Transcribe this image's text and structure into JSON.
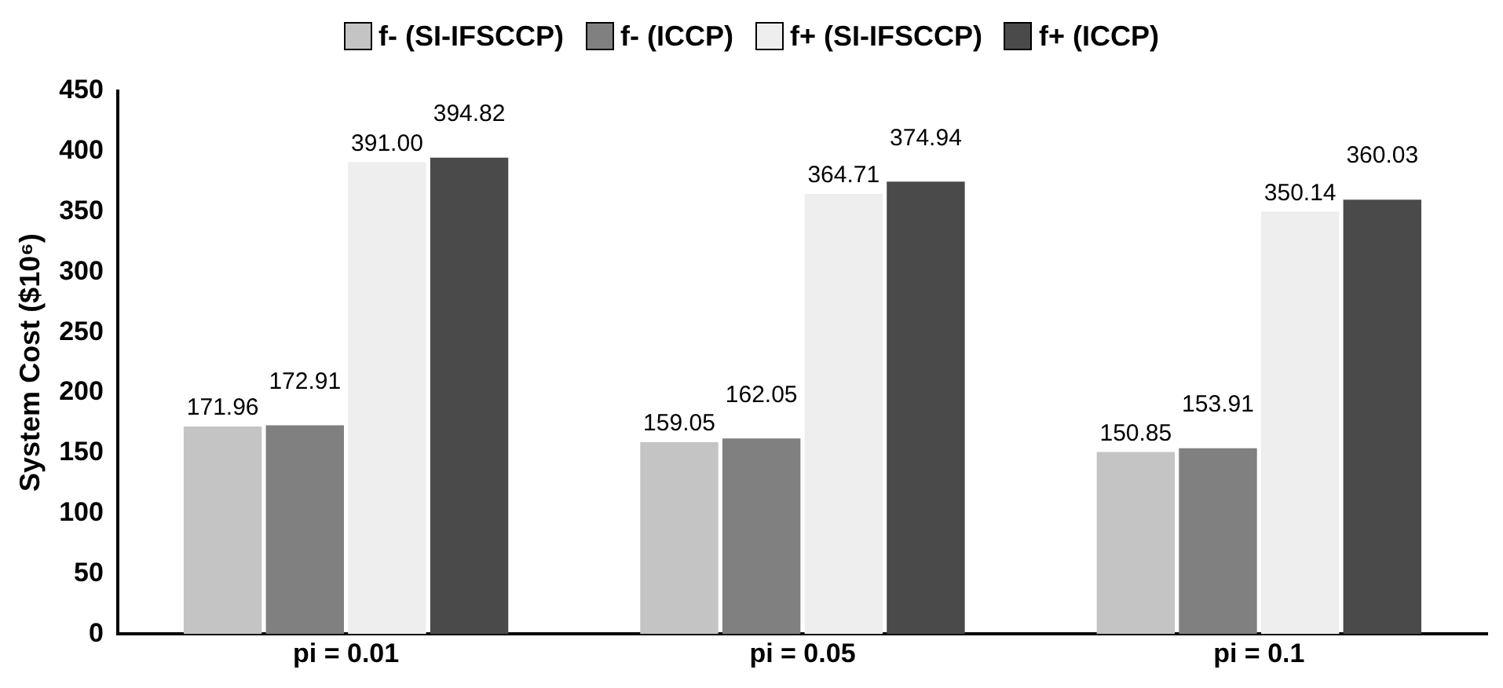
{
  "chart_data": {
    "type": "bar",
    "ylabel": "System Cost ($10⁶)",
    "categories": [
      "pi = 0.01",
      "pi = 0.05",
      "pi = 0.1"
    ],
    "series": [
      {
        "name": "f- (SI-IFSCCP)",
        "color": "#c4c4c4",
        "values": [
          171.96,
          159.05,
          150.85
        ],
        "value_labels": [
          "171.96",
          "159.05",
          "150.85"
        ]
      },
      {
        "name": "f- (ICCP)",
        "color": "#808080",
        "values": [
          172.91,
          162.05,
          153.91
        ],
        "value_labels": [
          "172.91",
          "162.05",
          "153.91"
        ]
      },
      {
        "name": "f+ (SI-IFSCCP)",
        "color": "#eeeeee",
        "values": [
          391.0,
          364.71,
          350.14
        ],
        "value_labels": [
          "391.00",
          "364.71",
          "350.14"
        ]
      },
      {
        "name": "f+ (ICCP)",
        "color": "#4a4a4a",
        "values": [
          394.82,
          374.94,
          360.03
        ],
        "value_labels": [
          "394.82",
          "374.94",
          "360.03"
        ]
      }
    ],
    "ylim": [
      0,
      450
    ],
    "yticks": [
      0,
      50,
      100,
      150,
      200,
      250,
      300,
      350,
      400,
      450
    ],
    "grid": false,
    "legend": "top"
  }
}
